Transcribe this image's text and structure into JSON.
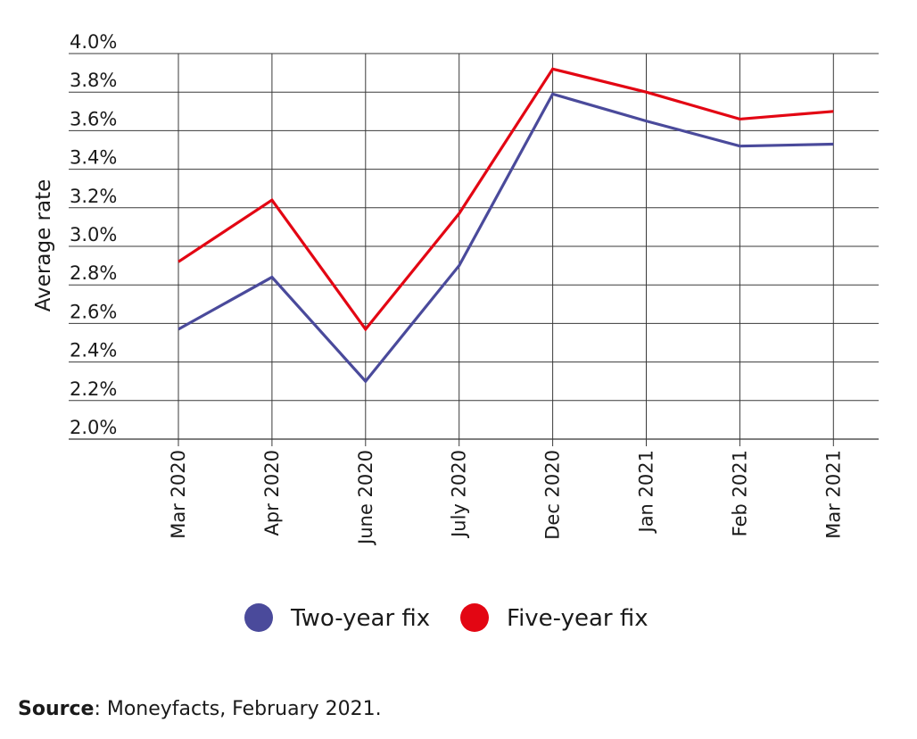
{
  "chart_data": {
    "type": "line",
    "categories": [
      "Mar 2020",
      "Apr 2020",
      "June 2020",
      "July 2020",
      "Dec 2020",
      "Jan 2021",
      "Feb 2021",
      "Mar 2021"
    ],
    "series": [
      {
        "name": "Two-year fix",
        "color": "#4a4a9b",
        "values": [
          2.57,
          2.84,
          2.3,
          2.9,
          3.79,
          3.65,
          3.52,
          3.53
        ]
      },
      {
        "name": "Five-year fix",
        "color": "#e30613",
        "values": [
          2.92,
          3.24,
          2.57,
          3.17,
          3.92,
          3.8,
          3.66,
          3.7
        ]
      }
    ],
    "ylabel": "Average rate",
    "xlabel": "",
    "ylim": [
      2.0,
      4.0
    ],
    "y_ticks": [
      "2.0%",
      "2.2%",
      "2.4%",
      "2.6%",
      "2.8%",
      "3.0%",
      "3.2%",
      "3.4%",
      "3.6%",
      "3.8%",
      "4.0%"
    ],
    "grid": true,
    "legend_position": "bottom-center"
  },
  "source": {
    "label": "Source",
    "text": ": Moneyfacts, February 2021."
  }
}
